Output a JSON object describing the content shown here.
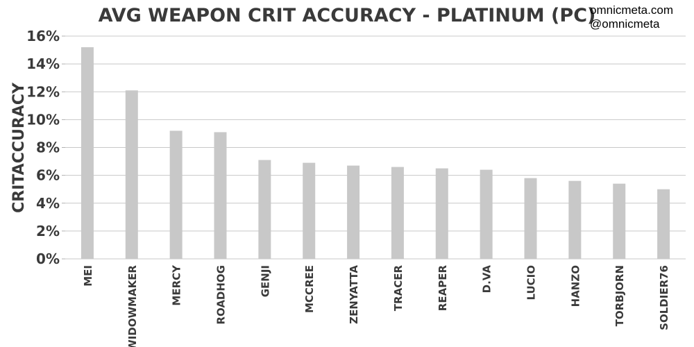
{
  "chart_data": {
    "type": "bar",
    "title": "AVG WEAPON CRIT ACCURACY - PLATINUM (PC)",
    "ylabel": "CRITACCURACY",
    "xlabel": "",
    "categories": [
      "MEI",
      "WIDOWMAKER",
      "MERCY",
      "ROADHOG",
      "GENJI",
      "MCCREE",
      "ZENYATTA",
      "TRACER",
      "REAPER",
      "D.VA",
      "LUCIO",
      "HANZO",
      "TORBJORN",
      "SOLDIER76"
    ],
    "values": [
      15.2,
      12.1,
      9.2,
      9.1,
      7.1,
      6.9,
      6.7,
      6.6,
      6.5,
      6.4,
      5.8,
      5.6,
      5.4,
      5.0
    ],
    "ylim": [
      0,
      16
    ],
    "yticks": [
      0,
      2,
      4,
      6,
      8,
      10,
      12,
      14,
      16
    ],
    "ytick_suffix": "%",
    "grid": true,
    "bar_color": "#c8c8c8",
    "legend": "none"
  },
  "credits": {
    "site": "omnicmeta.com",
    "handle": "@omnicmeta"
  }
}
